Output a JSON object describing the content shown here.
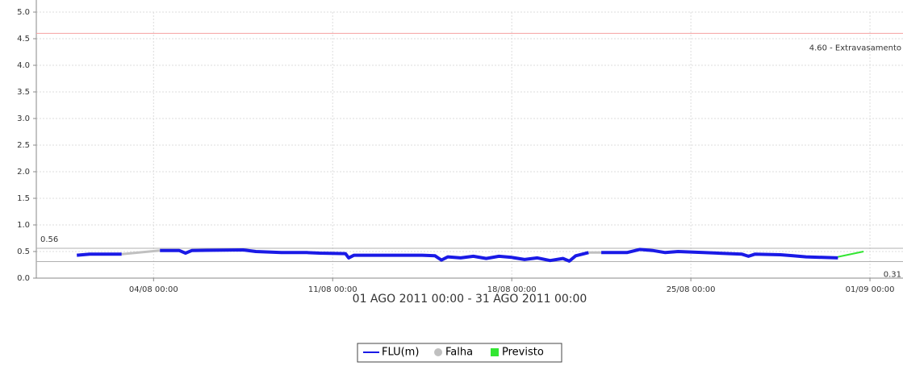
{
  "chart_data": {
    "type": "line",
    "subtitle": "01 AGO 2011 00:00 - 31 AGO 2011 00:00",
    "xlim": [
      "30/07 10:00",
      "02/09 07:00"
    ],
    "xticks": [
      "04/08 00:00",
      "11/08 00:00",
      "18/08 00:00",
      "25/08 00:00",
      "01/09 00:00"
    ],
    "ylim": [
      0,
      5
    ],
    "yticks": [
      {
        "value": 0,
        "label": "0.0"
      },
      0.5,
      {
        "value": 1,
        "label": "1.0"
      },
      1.5,
      {
        "value": 2,
        "label": "2.0"
      },
      2.5,
      {
        "value": 3,
        "label": "3.0"
      },
      3.5,
      {
        "value": 4,
        "label": "4.0"
      },
      4.5,
      {
        "value": 5,
        "label": "5.0"
      }
    ],
    "grid": true,
    "reference_lines": [
      {
        "value": 4.6,
        "label": "4.60 - Extravasamento",
        "color": "#f4a0a0"
      },
      {
        "value": 0.56,
        "label": "0.56",
        "color": "#b0b0b0"
      },
      {
        "value": 0.31,
        "label": "0.31",
        "color": "#b0b0b0"
      }
    ],
    "series": [
      {
        "name": "FLU(m)",
        "color": "#1a1ae6",
        "marker": "line",
        "x": [
          "01/08 00:00",
          "01/08 12:00",
          "02/08 18:00",
          "03/08 12:00",
          "04/08 06:00",
          "05/08 00:00",
          "05/08 06:00",
          "05/08 12:00",
          "07/08 12:00",
          "08/08 00:00",
          "09/08 00:00",
          "10/08 00:00",
          "10/08 12:00",
          "11/08 12:00",
          "11/08 15:00",
          "11/08 20:00",
          "13/08 00:00",
          "14/08 12:00",
          "15/08 00:00",
          "15/08 06:00",
          "15/08 12:00",
          "16/08 00:00",
          "16/08 12:00",
          "17/08 00:00",
          "17/08 12:00",
          "18/08 00:00",
          "18/08 12:00",
          "19/08 00:00",
          "19/08 12:00",
          "20/08 00:00",
          "20/08 06:00",
          "20/08 12:00",
          "21/08 00:00",
          "21/08 06:00",
          "21/08 12:00",
          "22/08 12:00",
          "23/08 00:00",
          "23/08 12:00",
          "24/08 00:00",
          "24/08 12:00",
          "25/08 12:00",
          "26/08 12:00",
          "27/08 00:00",
          "27/08 06:00",
          "27/08 12:00",
          "28/08 12:00",
          "29/08 00:00",
          "29/08 12:00",
          "30/08 18:00"
        ],
        "values": [
          0.43,
          0.45,
          0.45,
          null,
          0.52,
          0.52,
          0.47,
          0.52,
          0.53,
          0.5,
          0.48,
          0.48,
          0.47,
          0.46,
          0.38,
          0.43,
          0.43,
          0.43,
          0.42,
          0.34,
          0.4,
          0.38,
          0.41,
          0.37,
          0.41,
          0.39,
          0.35,
          0.38,
          0.33,
          0.37,
          0.32,
          0.42,
          0.48,
          null,
          0.48,
          0.48,
          0.54,
          0.52,
          0.48,
          0.5,
          0.48,
          0.46,
          0.45,
          0.41,
          0.45,
          0.44,
          0.42,
          0.4,
          0.38
        ]
      },
      {
        "name": "Falha",
        "color": "#c0c0c0",
        "marker": "circle",
        "x": [
          "02/08 18:00",
          "04/08 06:00",
          "12/08 00:00",
          "21/08 00:00",
          "21/08 12:00"
        ],
        "values": [
          0.45,
          0.52,
          null,
          0.48,
          0.48
        ]
      },
      {
        "name": "Previsto",
        "color": "#33e633",
        "marker": "square",
        "x": [
          "30/08 18:00",
          "31/08 18:00"
        ],
        "values": [
          0.4,
          0.5
        ]
      }
    ]
  }
}
